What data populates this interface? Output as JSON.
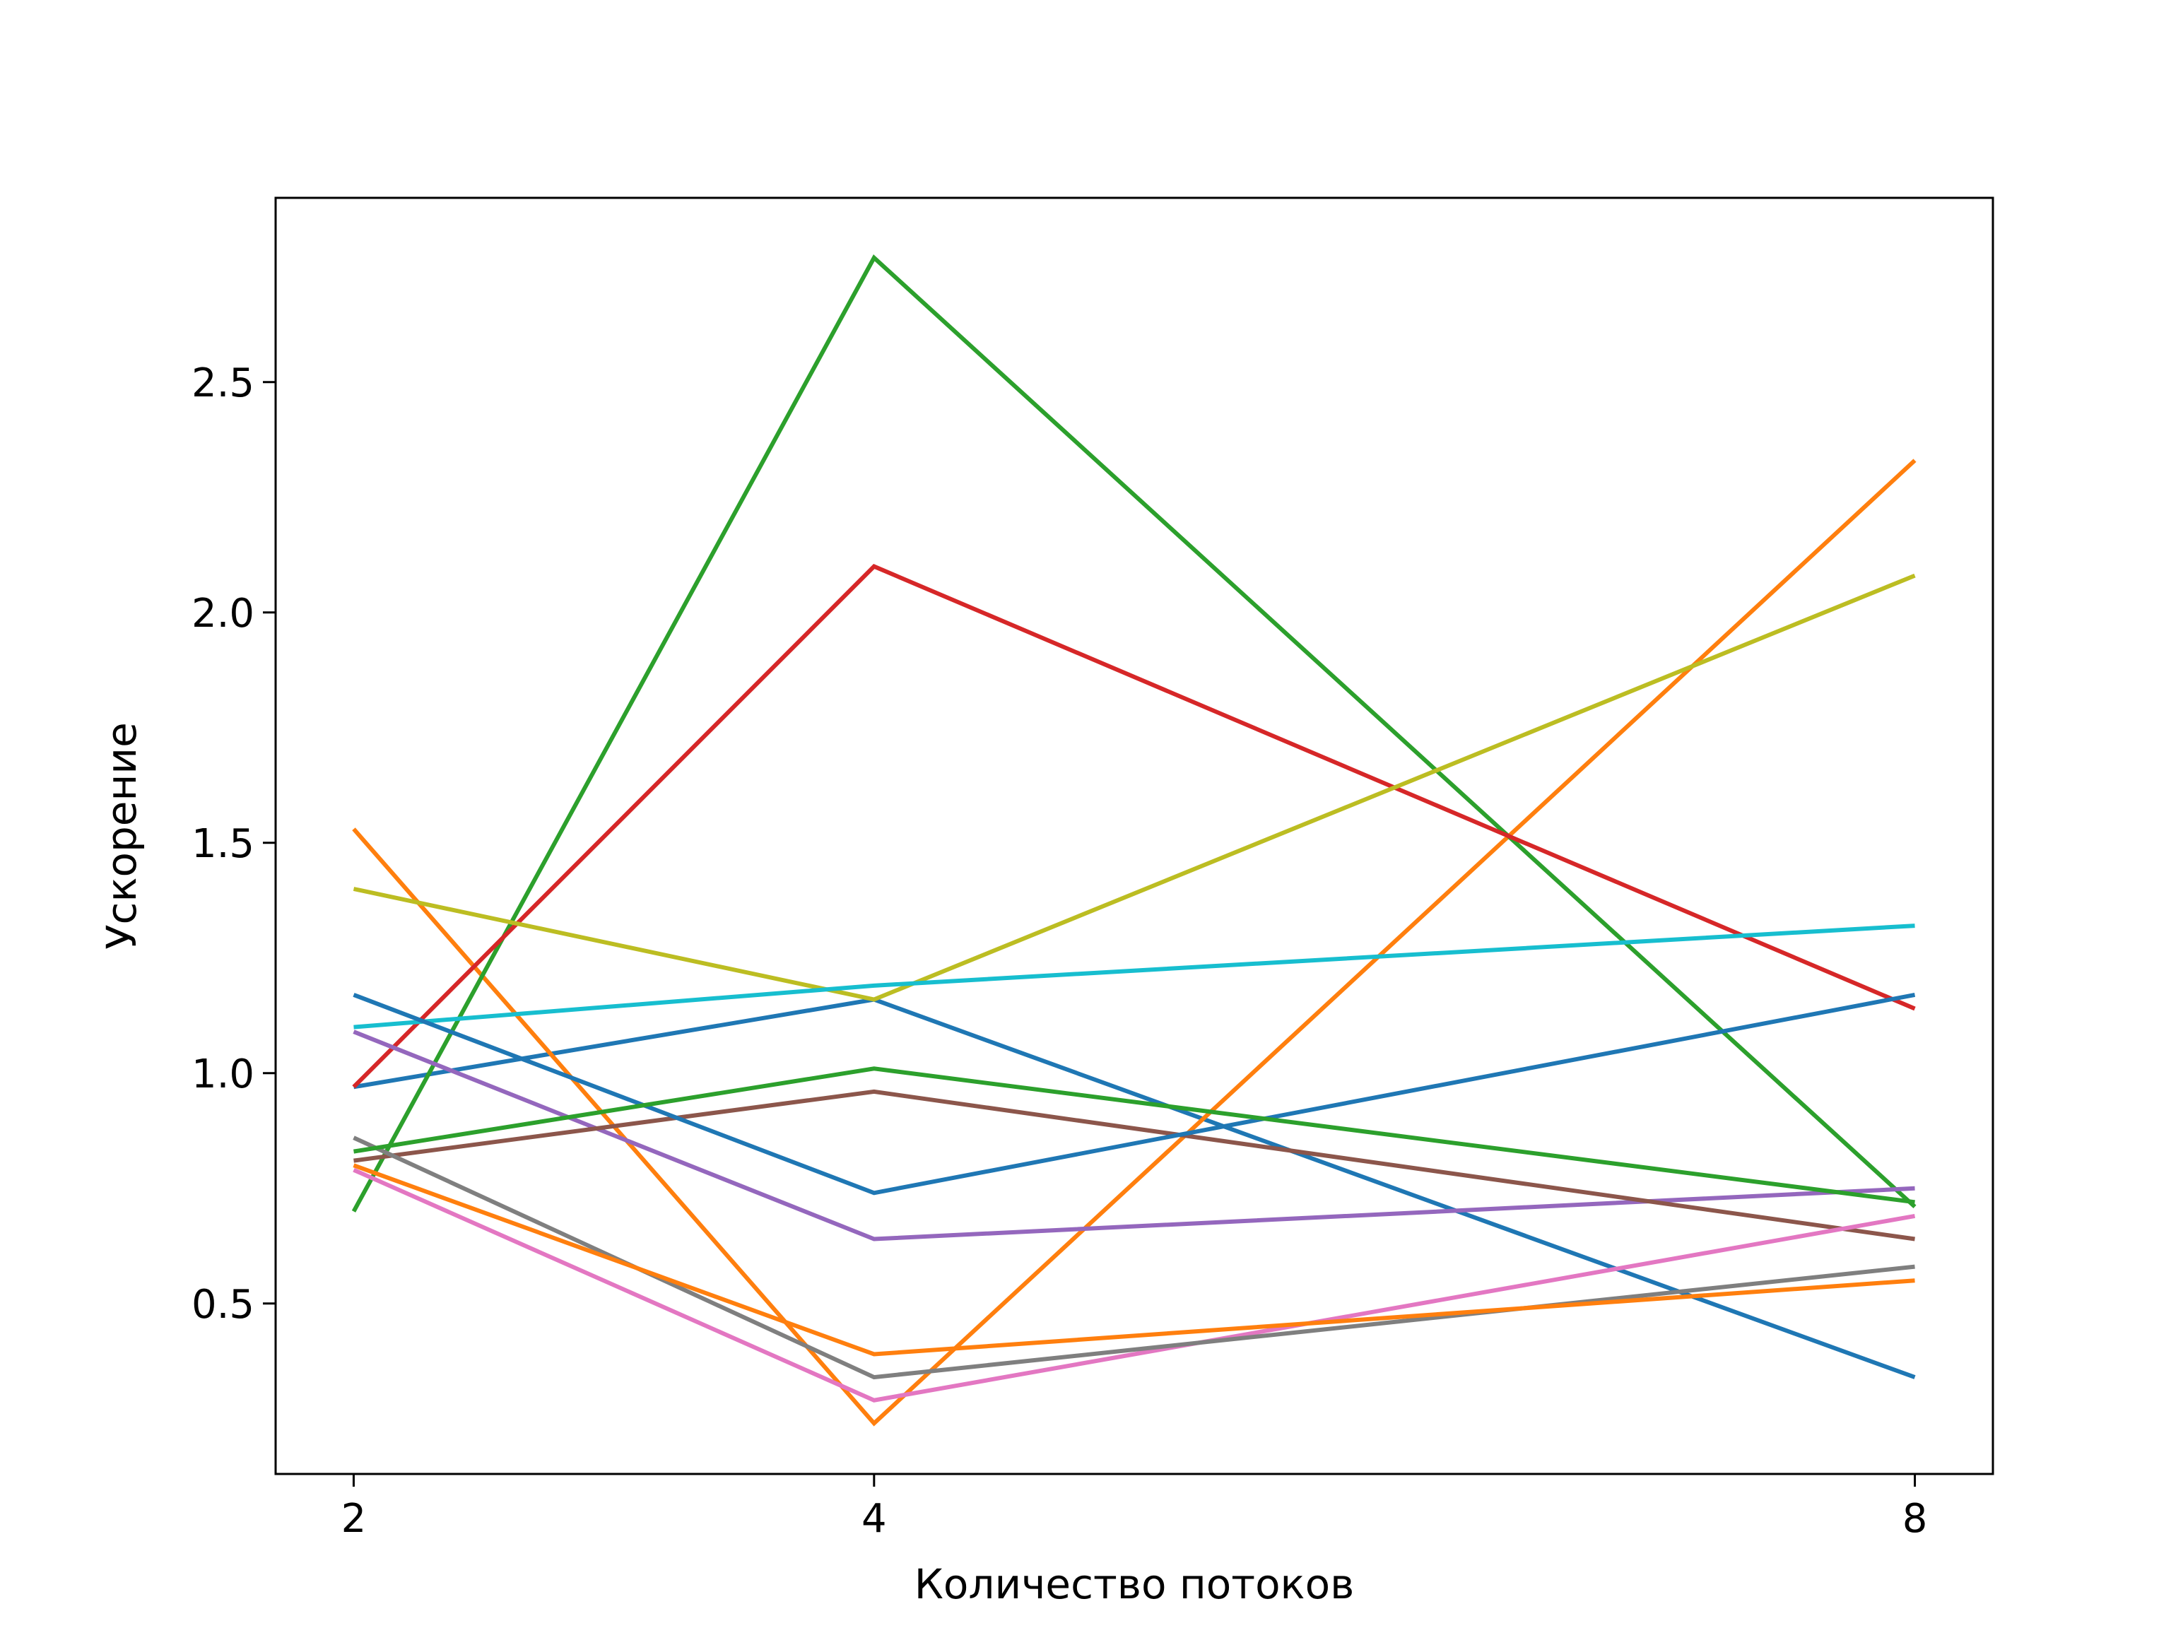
{
  "chart_data": {
    "type": "line",
    "title": "",
    "xlabel": "Количество потоков",
    "ylabel": "Ускорение",
    "x": [
      2,
      4,
      8
    ],
    "xlim": [
      1.7,
      8.3
    ],
    "ylim": [
      0.13,
      2.9
    ],
    "x_ticks": [
      2,
      4,
      8
    ],
    "x_tick_labels": [
      "2",
      "4",
      "8"
    ],
    "y_ticks": [
      0.5,
      1.0,
      1.5,
      2.0,
      2.5
    ],
    "y_tick_labels": [
      "0.5",
      "1.0",
      "1.5",
      "2.0",
      "2.5"
    ],
    "grid": false,
    "legend": "none",
    "series": [
      {
        "color": "#1f77b4",
        "values": [
          0.97,
          1.16,
          0.34
        ]
      },
      {
        "color": "#ff7f0e",
        "values": [
          1.53,
          0.24,
          2.33
        ]
      },
      {
        "color": "#2ca02c",
        "values": [
          0.7,
          2.77,
          0.71
        ]
      },
      {
        "color": "#d62728",
        "values": [
          0.97,
          2.1,
          1.14
        ]
      },
      {
        "color": "#9467bd",
        "values": [
          1.09,
          0.64,
          0.75
        ]
      },
      {
        "color": "#8c564b",
        "values": [
          0.81,
          0.96,
          0.64
        ]
      },
      {
        "color": "#e377c2",
        "values": [
          0.79,
          0.29,
          0.69
        ]
      },
      {
        "color": "#7f7f7f",
        "values": [
          0.86,
          0.34,
          0.58
        ]
      },
      {
        "color": "#bcbd22",
        "values": [
          1.4,
          1.16,
          2.08
        ]
      },
      {
        "color": "#17becf",
        "values": [
          1.1,
          1.19,
          1.32
        ]
      },
      {
        "color": "#1f77b4",
        "values": [
          1.17,
          0.74,
          1.17
        ]
      },
      {
        "color": "#ff7f0e",
        "values": [
          0.8,
          0.39,
          0.55
        ]
      },
      {
        "color": "#2ca02c",
        "values": [
          0.83,
          1.01,
          0.72
        ]
      }
    ]
  }
}
